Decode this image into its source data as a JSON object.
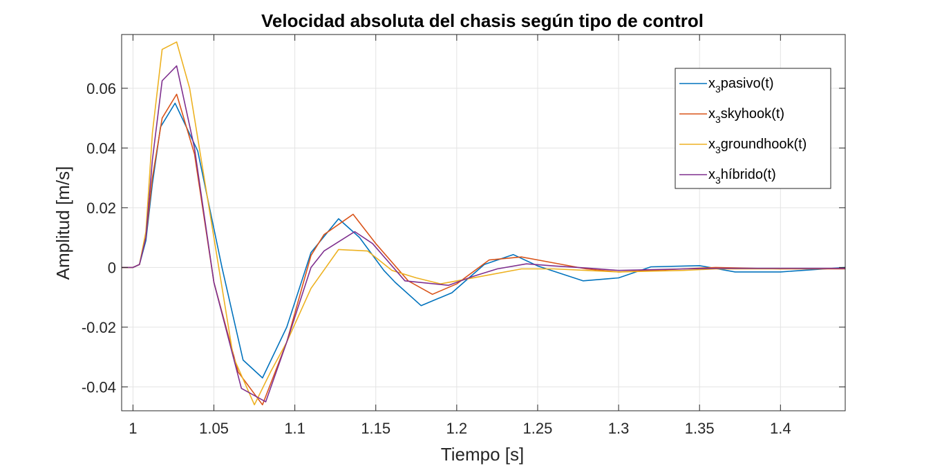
{
  "chart_data": {
    "type": "line",
    "title": "Velocidad absoluta del chasis según tipo de control",
    "xlabel": "Tiempo [s]",
    "ylabel": "Amplitud [m/s]",
    "xlim": [
      0.993,
      1.44
    ],
    "ylim": [
      -0.048,
      0.078
    ],
    "xticks": [
      1,
      1.05,
      1.1,
      1.15,
      1.2,
      1.25,
      1.3,
      1.35,
      1.4
    ],
    "xtick_labels": [
      "1",
      "1.05",
      "1.1",
      "1.15",
      "1.2",
      "1.25",
      "1.3",
      "1.35",
      "1.4"
    ],
    "yticks": [
      -0.04,
      -0.02,
      0,
      0.02,
      0.04,
      0.06
    ],
    "ytick_labels": [
      "-0.04",
      "-0.02",
      "0",
      "0.02",
      "0.04",
      "0.06"
    ],
    "grid": true,
    "legend_position": "top-right",
    "series": [
      {
        "name": "pasivo(t)",
        "legend_prefix": "x",
        "legend_sub": "3",
        "color": "#0072BD",
        "x": [
          0.993,
          1.0,
          1.004,
          1.008,
          1.012,
          1.017,
          1.026,
          1.04,
          1.055,
          1.068,
          1.08,
          1.095,
          1.11,
          1.127,
          1.14,
          1.155,
          1.162,
          1.178,
          1.197,
          1.217,
          1.235,
          1.25,
          1.278,
          1.3,
          1.32,
          1.35,
          1.372,
          1.4,
          1.44
        ],
        "y": [
          0.0,
          0.0,
          0.001,
          0.009,
          0.028,
          0.047,
          0.055,
          0.039,
          0.0,
          -0.031,
          -0.037,
          -0.02,
          0.005,
          0.0163,
          0.01,
          -0.001,
          -0.005,
          -0.0128,
          -0.0085,
          0.001,
          0.0043,
          0.0005,
          -0.0045,
          -0.0035,
          0.0002,
          0.0006,
          -0.0015,
          -0.0015,
          0.0
        ]
      },
      {
        "name": "skyhook(t)",
        "legend_prefix": "x",
        "legend_sub": "3",
        "color": "#D95319",
        "x": [
          0.993,
          1.0,
          1.004,
          1.008,
          1.012,
          1.018,
          1.027,
          1.038,
          1.05,
          1.065,
          1.08,
          1.095,
          1.11,
          1.118,
          1.136,
          1.15,
          1.17,
          1.185,
          1.2,
          1.22,
          1.24,
          1.26,
          1.28,
          1.3,
          1.34,
          1.36,
          1.4,
          1.44
        ],
        "y": [
          0.0,
          0.0,
          0.001,
          0.01,
          0.03,
          0.05,
          0.058,
          0.038,
          -0.005,
          -0.035,
          -0.046,
          -0.025,
          0.004,
          0.011,
          0.0178,
          0.008,
          -0.0045,
          -0.009,
          -0.0055,
          0.0025,
          0.0035,
          0.0015,
          -0.0005,
          -0.0015,
          -0.0005,
          0.0,
          -0.0005,
          -0.0005
        ]
      },
      {
        "name": "groundhook(t)",
        "legend_prefix": "x",
        "legend_sub": "3",
        "color": "#EDB120",
        "x": [
          0.993,
          1.0,
          1.004,
          1.008,
          1.012,
          1.018,
          1.027,
          1.035,
          1.05,
          1.062,
          1.075,
          1.085,
          1.095,
          1.11,
          1.127,
          1.145,
          1.16,
          1.175,
          1.19,
          1.205,
          1.22,
          1.24,
          1.26,
          1.28,
          1.3,
          1.34,
          1.36,
          1.4,
          1.44
        ],
        "y": [
          0.0,
          0.0,
          0.001,
          0.012,
          0.045,
          0.073,
          0.0755,
          0.06,
          0.01,
          -0.03,
          -0.046,
          -0.035,
          -0.025,
          -0.007,
          0.006,
          0.0055,
          -0.001,
          -0.0035,
          -0.0055,
          -0.004,
          -0.0025,
          -0.0005,
          -0.0005,
          -0.001,
          -0.0015,
          -0.001,
          -0.0005,
          -0.0005,
          -0.0003
        ]
      },
      {
        "name": "híbrido(t)",
        "legend_prefix": "x",
        "legend_sub": "3",
        "color": "#7E2F8E",
        "x": [
          0.993,
          1.0,
          1.004,
          1.008,
          1.012,
          1.018,
          1.027,
          1.038,
          1.05,
          1.067,
          1.082,
          1.095,
          1.11,
          1.118,
          1.137,
          1.148,
          1.168,
          1.195,
          1.21,
          1.225,
          1.243,
          1.26,
          1.28,
          1.3,
          1.34,
          1.36,
          1.4,
          1.44
        ],
        "y": [
          0.0,
          0.0,
          0.001,
          0.01,
          0.036,
          0.0625,
          0.0675,
          0.04,
          -0.005,
          -0.0405,
          -0.045,
          -0.025,
          0.0,
          0.0055,
          0.012,
          0.008,
          -0.0045,
          -0.006,
          -0.003,
          -0.0005,
          0.0012,
          0.0005,
          -0.0002,
          -0.001,
          -0.0005,
          -0.0003,
          -0.0003,
          -0.0003
        ]
      }
    ]
  }
}
